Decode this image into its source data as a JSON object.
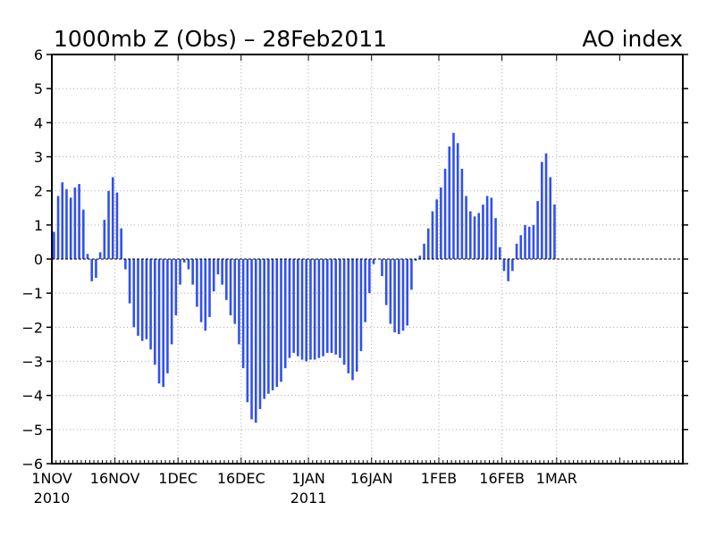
{
  "chart_data": {
    "type": "bar",
    "title": "1000mb Z (Obs) – 28Feb2011",
    "subtitle": "AO index",
    "xlabel": "",
    "ylabel": "",
    "ylim": [
      -6,
      6
    ],
    "yticks": [
      -6,
      -5,
      -4,
      -3,
      -2,
      -1,
      0,
      1,
      2,
      3,
      4,
      5,
      6
    ],
    "x_start": "2010-11-01",
    "x_end": "2011-03-31",
    "grid": true,
    "bar_color": "#3050f0",
    "xticks": [
      {
        "label": "1NOV",
        "date": "2010-11-01",
        "sub": "2010"
      },
      {
        "label": "16NOV",
        "date": "2010-11-16",
        "sub": ""
      },
      {
        "label": "1DEC",
        "date": "2010-12-01",
        "sub": ""
      },
      {
        "label": "16DEC",
        "date": "2010-12-16",
        "sub": ""
      },
      {
        "label": "1JAN",
        "date": "2011-01-01",
        "sub": "2011"
      },
      {
        "label": "16JAN",
        "date": "2011-01-16",
        "sub": ""
      },
      {
        "label": "1FEB",
        "date": "2011-02-01",
        "sub": ""
      },
      {
        "label": "16FEB",
        "date": "2011-02-16",
        "sub": ""
      },
      {
        "label": "1MAR",
        "date": "2011-03-01",
        "sub": ""
      }
    ],
    "dates": [
      "2010-11-01",
      "2010-11-02",
      "2010-11-03",
      "2010-11-04",
      "2010-11-05",
      "2010-11-06",
      "2010-11-07",
      "2010-11-08",
      "2010-11-09",
      "2010-11-10",
      "2010-11-11",
      "2010-11-12",
      "2010-11-13",
      "2010-11-14",
      "2010-11-15",
      "2010-11-16",
      "2010-11-17",
      "2010-11-18",
      "2010-11-19",
      "2010-11-20",
      "2010-11-21",
      "2010-11-22",
      "2010-11-23",
      "2010-11-24",
      "2010-11-25",
      "2010-11-26",
      "2010-11-27",
      "2010-11-28",
      "2010-11-29",
      "2010-11-30",
      "2010-12-01",
      "2010-12-02",
      "2010-12-03",
      "2010-12-04",
      "2010-12-05",
      "2010-12-06",
      "2010-12-07",
      "2010-12-08",
      "2010-12-09",
      "2010-12-10",
      "2010-12-11",
      "2010-12-12",
      "2010-12-13",
      "2010-12-14",
      "2010-12-15",
      "2010-12-16",
      "2010-12-17",
      "2010-12-18",
      "2010-12-19",
      "2010-12-20",
      "2010-12-21",
      "2010-12-22",
      "2010-12-23",
      "2010-12-24",
      "2010-12-25",
      "2010-12-26",
      "2010-12-27",
      "2010-12-28",
      "2010-12-29",
      "2010-12-30",
      "2010-12-31",
      "2011-01-01",
      "2011-01-02",
      "2011-01-03",
      "2011-01-04",
      "2011-01-05",
      "2011-01-06",
      "2011-01-07",
      "2011-01-08",
      "2011-01-09",
      "2011-01-10",
      "2011-01-11",
      "2011-01-12",
      "2011-01-13",
      "2011-01-14",
      "2011-01-15",
      "2011-01-16",
      "2011-01-17",
      "2011-01-18",
      "2011-01-19",
      "2011-01-20",
      "2011-01-21",
      "2011-01-22",
      "2011-01-23",
      "2011-01-24",
      "2011-01-25",
      "2011-01-26",
      "2011-01-27",
      "2011-01-28",
      "2011-01-29",
      "2011-01-30",
      "2011-01-31",
      "2011-02-01",
      "2011-02-02",
      "2011-02-03",
      "2011-02-04",
      "2011-02-05",
      "2011-02-06",
      "2011-02-07",
      "2011-02-08",
      "2011-02-09",
      "2011-02-10",
      "2011-02-11",
      "2011-02-12",
      "2011-02-13",
      "2011-02-14",
      "2011-02-15",
      "2011-02-16",
      "2011-02-17",
      "2011-02-18",
      "2011-02-19",
      "2011-02-20",
      "2011-02-21",
      "2011-02-22",
      "2011-02-23",
      "2011-02-24",
      "2011-02-25",
      "2011-02-26",
      "2011-02-27",
      "2011-02-28"
    ],
    "values": [
      0.8,
      1.85,
      2.25,
      2.05,
      1.8,
      2.1,
      2.2,
      1.45,
      0.15,
      -0.65,
      -0.55,
      0.2,
      1.15,
      2.0,
      2.4,
      1.95,
      0.9,
      -0.3,
      -1.3,
      -2.0,
      -2.25,
      -2.4,
      -2.35,
      -2.65,
      -3.1,
      -3.65,
      -3.75,
      -3.35,
      -2.5,
      -1.65,
      -0.75,
      -0.1,
      -0.3,
      -0.75,
      -1.4,
      -1.85,
      -2.1,
      -1.7,
      -0.95,
      -0.45,
      -0.75,
      -1.2,
      -1.65,
      -1.9,
      -2.5,
      -3.2,
      -4.2,
      -4.7,
      -4.8,
      -4.4,
      -4.1,
      -3.95,
      -3.85,
      -3.75,
      -3.6,
      -3.2,
      -2.9,
      -2.75,
      -2.85,
      -2.95,
      -3.0,
      -2.95,
      -2.95,
      -2.9,
      -2.85,
      -2.75,
      -2.75,
      -2.8,
      -2.9,
      -3.1,
      -3.35,
      -3.55,
      -3.3,
      -2.7,
      -1.85,
      -1.0,
      -0.15,
      0.0,
      -0.5,
      -1.35,
      -1.9,
      -2.15,
      -2.2,
      -2.1,
      -1.95,
      -0.9,
      -0.05,
      0.1,
      0.45,
      0.9,
      1.4,
      1.75,
      2.1,
      2.65,
      3.3,
      3.7,
      3.4,
      2.65,
      1.85,
      1.4,
      1.25,
      1.35,
      1.6,
      1.85,
      1.8,
      1.2,
      0.35,
      -0.35,
      -0.65,
      -0.35,
      0.45,
      0.7,
      1.0,
      0.95,
      1.0,
      1.7,
      2.85,
      3.1,
      2.4,
      1.6
    ]
  }
}
